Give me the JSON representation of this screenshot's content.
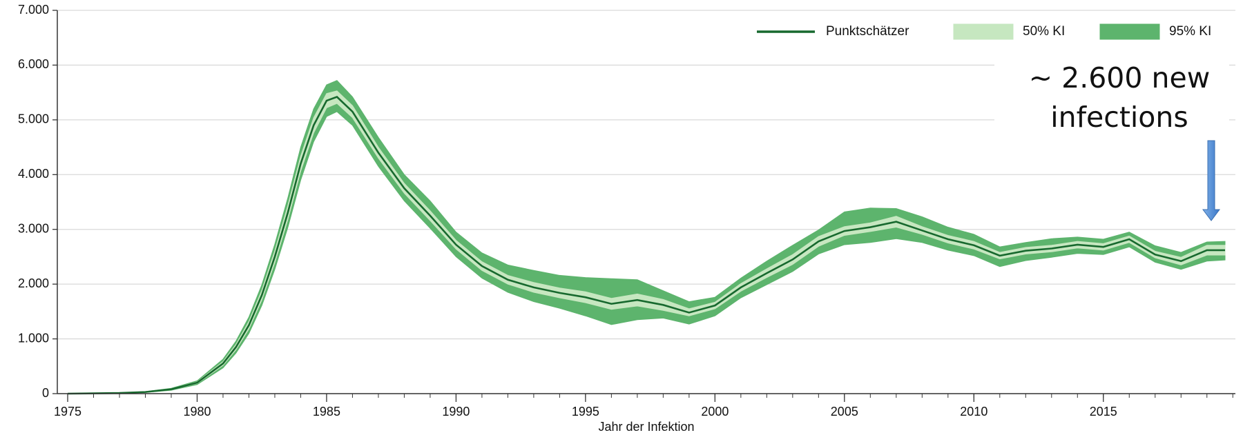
{
  "chart_data": {
    "type": "line",
    "xlabel": "Jahr der Infektion",
    "annotation": [
      "~ 2.600 new",
      "infections"
    ],
    "legend": "top-right",
    "grid": true,
    "xlim": [
      1974.6,
      2020.1
    ],
    "ylim": [
      0,
      7000
    ],
    "xticks": [
      1975,
      1980,
      1985,
      1990,
      1995,
      2000,
      2005,
      2010,
      2015
    ],
    "yticks": [
      0,
      {
        "value": 1000,
        "label": "1.000"
      },
      {
        "value": 2000,
        "label": "2.000"
      },
      {
        "value": 3000,
        "label": "3.000"
      },
      {
        "value": 4000,
        "label": "4.000"
      },
      {
        "value": 5000,
        "label": "5.000"
      },
      {
        "value": 6000,
        "label": "6.000"
      },
      {
        "value": 7000,
        "label": "7.000"
      }
    ],
    "x": [
      1975,
      1976,
      1977,
      1978,
      1979,
      1980,
      1981,
      1981.5,
      1982,
      1982.5,
      1983,
      1983.5,
      1984,
      1984.5,
      1985,
      1985.4,
      1986,
      1987,
      1988,
      1989,
      1990,
      1991,
      1992,
      1993,
      1994,
      1995,
      1996,
      1997,
      1998,
      1999,
      2000,
      2001,
      2002,
      2003,
      2004,
      2005,
      2006,
      2007,
      2008,
      2009,
      2010,
      2011,
      2012,
      2013,
      2014,
      2015,
      2016,
      2017,
      2018,
      2019,
      2019.7
    ],
    "series": [
      {
        "name": "Punktschätzer",
        "color": "#17692e",
        "values": [
          0,
          5,
          12,
          30,
          80,
          200,
          550,
          850,
          1250,
          1800,
          2500,
          3300,
          4200,
          4900,
          5350,
          5420,
          5150,
          4400,
          3750,
          3250,
          2720,
          2330,
          2080,
          1940,
          1840,
          1760,
          1640,
          1710,
          1620,
          1480,
          1610,
          1940,
          2200,
          2450,
          2780,
          2970,
          3040,
          3140,
          2980,
          2820,
          2710,
          2520,
          2610,
          2650,
          2720,
          2680,
          2820,
          2540,
          2420,
          2620,
          2620
        ]
      },
      {
        "name": "50% KI",
        "color": "#c6e7c0",
        "lower": [
          0,
          4,
          10,
          27,
          72,
          185,
          515,
          800,
          1180,
          1710,
          2390,
          3170,
          4060,
          4760,
          5220,
          5300,
          5040,
          4300,
          3660,
          3160,
          2640,
          2250,
          2000,
          1850,
          1750,
          1660,
          1540,
          1600,
          1520,
          1420,
          1550,
          1870,
          2120,
          2360,
          2690,
          2890,
          2960,
          3040,
          2910,
          2750,
          2640,
          2460,
          2550,
          2590,
          2660,
          2620,
          2760,
          2480,
          2350,
          2530,
          2530
        ],
        "upper": [
          0,
          6,
          14,
          33,
          88,
          215,
          585,
          900,
          1320,
          1890,
          2610,
          3430,
          4340,
          5040,
          5480,
          5530,
          5260,
          4500,
          3840,
          3340,
          2800,
          2410,
          2160,
          2030,
          1930,
          1860,
          1740,
          1820,
          1720,
          1550,
          1670,
          2010,
          2280,
          2540,
          2870,
          3050,
          3120,
          3240,
          3050,
          2890,
          2780,
          2580,
          2670,
          2710,
          2780,
          2740,
          2880,
          2600,
          2490,
          2710,
          2710
        ]
      },
      {
        "name": "95% KI",
        "color": "#5db46d",
        "lower": [
          0,
          3,
          8,
          22,
          62,
          165,
          470,
          740,
          1100,
          1610,
          2270,
          3030,
          3900,
          4600,
          5060,
          5150,
          4900,
          4150,
          3520,
          3020,
          2500,
          2110,
          1850,
          1680,
          1560,
          1420,
          1260,
          1350,
          1380,
          1270,
          1420,
          1750,
          1990,
          2230,
          2550,
          2720,
          2760,
          2830,
          2760,
          2620,
          2520,
          2320,
          2430,
          2490,
          2560,
          2540,
          2680,
          2400,
          2270,
          2420,
          2440
        ],
        "upper": [
          0,
          7,
          16,
          38,
          98,
          235,
          630,
          960,
          1400,
          1990,
          2730,
          3570,
          4500,
          5200,
          5640,
          5720,
          5420,
          4680,
          4000,
          3520,
          2950,
          2570,
          2350,
          2250,
          2160,
          2120,
          2100,
          2080,
          1880,
          1680,
          1760,
          2110,
          2420,
          2710,
          2990,
          3320,
          3390,
          3380,
          3230,
          3040,
          2910,
          2680,
          2760,
          2830,
          2860,
          2820,
          2950,
          2700,
          2580,
          2770,
          2780
        ]
      }
    ]
  }
}
